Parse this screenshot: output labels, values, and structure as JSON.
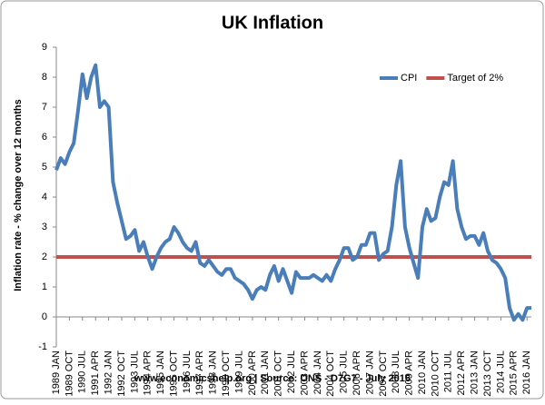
{
  "chart_data": {
    "type": "line",
    "title": "UK Inflation",
    "y_label": "Inflation rate  - % change over 12 months",
    "source": "www.economicshelp.org | Source: ONS - D7G7  - July 2016",
    "legend": "top-right",
    "categories": [
      "1989 JAN",
      null,
      null,
      "1989 OCT",
      null,
      null,
      "1990 JUL",
      null,
      null,
      "1991 APR",
      null,
      null,
      "1992 JAN",
      null,
      null,
      "1992 OCT",
      null,
      null,
      "1993 JUL",
      null,
      null,
      "1994 APR",
      null,
      null,
      "1995 JAN",
      null,
      null,
      "1995 OCT",
      null,
      null,
      "1996 JUL",
      null,
      null,
      "1997 APR",
      null,
      null,
      "1998 JAN",
      null,
      null,
      "1998 OCT",
      null,
      null,
      "1999 JUL",
      null,
      null,
      "2000 APR",
      null,
      null,
      "2001 JAN",
      null,
      null,
      "2001 OCT",
      null,
      null,
      "2002 JUL",
      null,
      null,
      "2003 APR",
      null,
      null,
      "2004 JAN",
      null,
      null,
      "2004 OCT",
      null,
      null,
      "2005 JUL",
      null,
      null,
      "2006 APR",
      null,
      null,
      "2007 JAN",
      null,
      null,
      "2007 OCT",
      null,
      null,
      "2008 JUL",
      null,
      null,
      "2009 APR",
      null,
      null,
      "2010 JAN",
      null,
      null,
      "2010 OCT",
      null,
      null,
      "2011 JUL",
      null,
      null,
      "2012 APR",
      null,
      null,
      "2013 JAN",
      null,
      null,
      "2013 OCT",
      null,
      null,
      "2014 JUL",
      null,
      null,
      "2015 APR",
      null,
      null,
      "2016 JAN",
      null
    ],
    "series": [
      {
        "name": "CPI",
        "color": "#4a7ebb",
        "values": [
          4.9,
          5.3,
          5.1,
          5.5,
          5.8,
          6.9,
          8.1,
          7.3,
          8.0,
          8.4,
          7.0,
          7.2,
          7.0,
          4.5,
          3.8,
          3.2,
          2.6,
          2.7,
          2.9,
          2.2,
          2.5,
          2.0,
          1.6,
          2.0,
          2.3,
          2.5,
          2.6,
          3.0,
          2.8,
          2.5,
          2.3,
          2.2,
          2.5,
          1.8,
          1.7,
          1.9,
          1.7,
          1.5,
          1.4,
          1.6,
          1.6,
          1.3,
          1.2,
          1.1,
          0.9,
          0.6,
          0.9,
          1.0,
          0.9,
          1.4,
          1.7,
          1.2,
          1.6,
          1.2,
          0.8,
          1.5,
          1.3,
          1.3,
          1.3,
          1.4,
          1.3,
          1.2,
          1.4,
          1.2,
          1.6,
          1.9,
          2.3,
          2.3,
          1.9,
          2.0,
          2.4,
          2.4,
          2.8,
          2.8,
          1.9,
          2.1,
          2.2,
          3.0,
          4.4,
          5.2,
          3.0,
          2.3,
          1.8,
          1.3,
          3.0,
          3.6,
          3.2,
          3.3,
          4.0,
          4.5,
          4.4,
          5.2,
          3.6,
          3.0,
          2.6,
          2.7,
          2.7,
          2.4,
          2.8,
          2.2,
          1.9,
          1.8,
          1.6,
          1.3,
          0.3,
          -0.1,
          0.1,
          -0.1,
          0.3,
          0.3
        ]
      },
      {
        "name": "Target of 2%",
        "color": "#c0504d",
        "values": [
          2,
          2,
          2,
          2,
          2,
          2,
          2,
          2,
          2,
          2,
          2,
          2,
          2,
          2,
          2,
          2,
          2,
          2,
          2,
          2,
          2,
          2,
          2,
          2,
          2,
          2,
          2,
          2,
          2,
          2,
          2,
          2,
          2,
          2,
          2,
          2,
          2,
          2,
          2,
          2,
          2,
          2,
          2,
          2,
          2,
          2,
          2,
          2,
          2,
          2,
          2,
          2,
          2,
          2,
          2,
          2,
          2,
          2,
          2,
          2,
          2,
          2,
          2,
          2,
          2,
          2,
          2,
          2,
          2,
          2,
          2,
          2,
          2,
          2,
          2,
          2,
          2,
          2,
          2,
          2,
          2,
          2,
          2,
          2,
          2,
          2,
          2,
          2,
          2,
          2,
          2,
          2,
          2,
          2,
          2,
          2,
          2,
          2,
          2,
          2,
          2,
          2,
          2,
          2,
          2,
          2,
          2,
          2,
          2,
          2
        ]
      }
    ],
    "ylim": [
      -1,
      9
    ],
    "yticks": [
      -1,
      0,
      1,
      2,
      3,
      4,
      5,
      6,
      7,
      8,
      9
    ]
  }
}
